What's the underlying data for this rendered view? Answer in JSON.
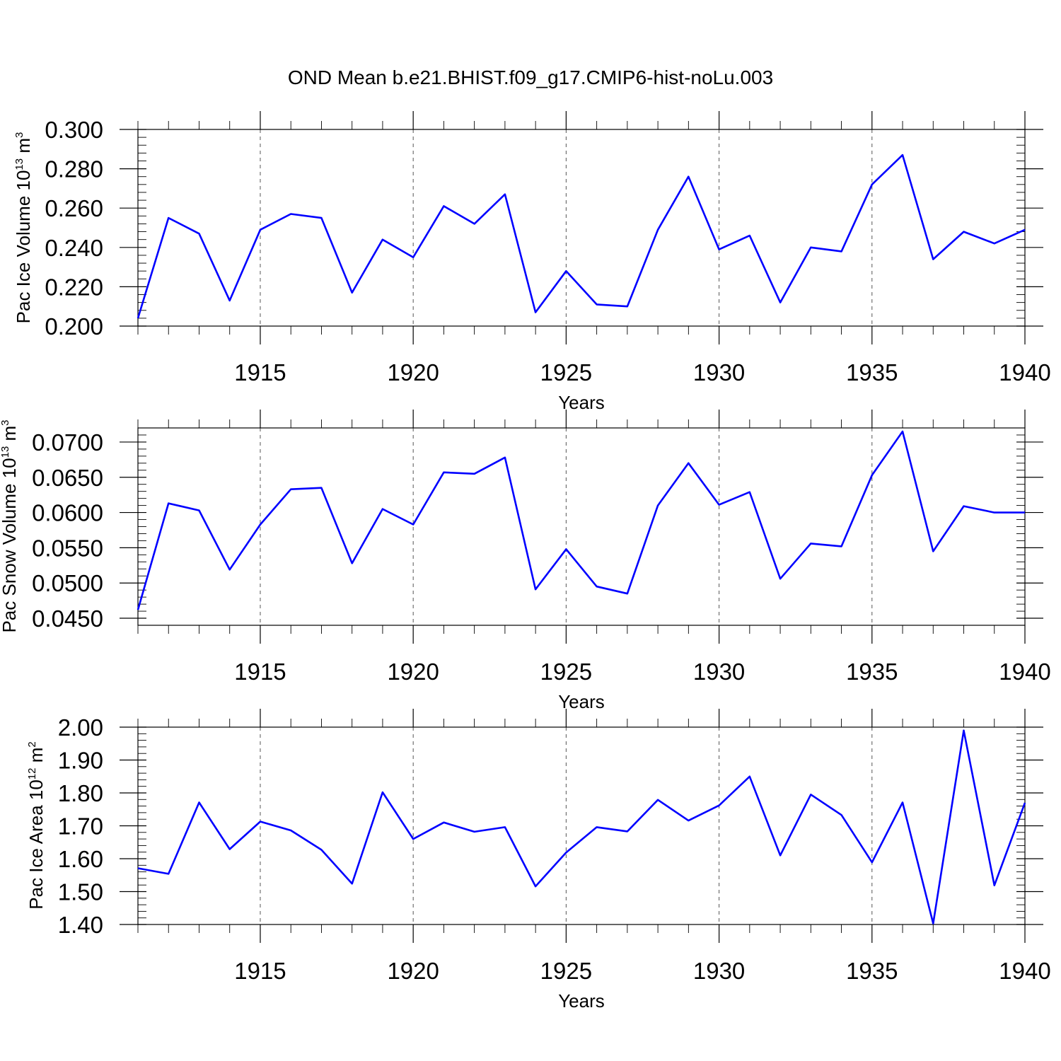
{
  "chart_data": {
    "title": "OND Mean b.e21.BHIST.f09_g17.CMIP6-hist-noLu.003",
    "panels": [
      {
        "type": "line",
        "ylabel_main": "Pac Ice Volume 10",
        "ylabel_exp": "13",
        "ylabel_unit": " m",
        "ylabel_unit_exp": "3",
        "xlabel": "Years",
        "xlim": [
          1911,
          1940
        ],
        "ylim": [
          0.2,
          0.3
        ],
        "yticks": [
          0.2,
          0.22,
          0.24,
          0.26,
          0.28,
          0.3
        ],
        "ytick_labels": [
          "0.200",
          "0.220",
          "0.240",
          "0.260",
          "0.280",
          "0.300"
        ],
        "xticks": [
          1915,
          1920,
          1925,
          1930,
          1935,
          1940
        ],
        "xtick_labels": [
          "1915",
          "1920",
          "1925",
          "1930",
          "1935",
          "1940"
        ],
        "x": [
          1911,
          1912,
          1913,
          1914,
          1915,
          1916,
          1917,
          1918,
          1919,
          1920,
          1921,
          1922,
          1923,
          1924,
          1925,
          1926,
          1927,
          1928,
          1929,
          1930,
          1931,
          1932,
          1933,
          1934,
          1935,
          1936,
          1937,
          1938,
          1939,
          1940
        ],
        "values": [
          0.204,
          0.255,
          0.247,
          0.213,
          0.249,
          0.257,
          0.255,
          0.217,
          0.244,
          0.235,
          0.261,
          0.252,
          0.267,
          0.207,
          0.228,
          0.211,
          0.21,
          0.249,
          0.276,
          0.239,
          0.246,
          0.212,
          0.24,
          0.238,
          0.272,
          0.287,
          0.234,
          0.248,
          0.242,
          0.249
        ],
        "color": "#0000ff"
      },
      {
        "type": "line",
        "ylabel_main": "Pac Snow Volume 10",
        "ylabel_exp": "13",
        "ylabel_unit": " m",
        "ylabel_unit_exp": "3",
        "xlabel": "Years",
        "xlim": [
          1911,
          1940
        ],
        "ylim": [
          0.044,
          0.072
        ],
        "yticks": [
          0.045,
          0.05,
          0.055,
          0.06,
          0.065,
          0.07
        ],
        "ytick_labels": [
          "0.0450",
          "0.0500",
          "0.0550",
          "0.0600",
          "0.0650",
          "0.0700"
        ],
        "xticks": [
          1915,
          1920,
          1925,
          1930,
          1935,
          1940
        ],
        "xtick_labels": [
          "1915",
          "1920",
          "1925",
          "1930",
          "1935",
          "1940"
        ],
        "x": [
          1911,
          1912,
          1913,
          1914,
          1915,
          1916,
          1917,
          1918,
          1919,
          1920,
          1921,
          1922,
          1923,
          1924,
          1925,
          1926,
          1927,
          1928,
          1929,
          1930,
          1931,
          1932,
          1933,
          1934,
          1935,
          1936,
          1937,
          1938,
          1939,
          1940
        ],
        "values": [
          0.0462,
          0.0613,
          0.0603,
          0.0519,
          0.0583,
          0.0633,
          0.0635,
          0.0528,
          0.0605,
          0.0583,
          0.0657,
          0.0655,
          0.0678,
          0.0491,
          0.0548,
          0.0495,
          0.0485,
          0.061,
          0.067,
          0.0611,
          0.0629,
          0.0506,
          0.0556,
          0.0552,
          0.0653,
          0.0715,
          0.0545,
          0.0609,
          0.06,
          0.06
        ],
        "color": "#0000ff"
      },
      {
        "type": "line",
        "ylabel_main": "Pac Ice Area 10",
        "ylabel_exp": "12",
        "ylabel_unit": " m",
        "ylabel_unit_exp": "2",
        "xlabel": "Years",
        "xlim": [
          1911,
          1940
        ],
        "ylim": [
          1.4,
          2.0
        ],
        "yticks": [
          1.4,
          1.5,
          1.6,
          1.7,
          1.8,
          1.9,
          2.0
        ],
        "ytick_labels": [
          "1.40",
          "1.50",
          "1.60",
          "1.70",
          "1.80",
          "1.90",
          "2.00"
        ],
        "xticks": [
          1915,
          1920,
          1925,
          1930,
          1935,
          1940
        ],
        "xtick_labels": [
          "1915",
          "1920",
          "1925",
          "1930",
          "1935",
          "1940"
        ],
        "x": [
          1911,
          1912,
          1913,
          1914,
          1915,
          1916,
          1917,
          1918,
          1919,
          1920,
          1921,
          1922,
          1923,
          1924,
          1925,
          1926,
          1927,
          1928,
          1929,
          1930,
          1931,
          1932,
          1933,
          1934,
          1935,
          1936,
          1937,
          1938,
          1939,
          1940
        ],
        "values": [
          1.571,
          1.554,
          1.771,
          1.629,
          1.713,
          1.686,
          1.627,
          1.524,
          1.802,
          1.66,
          1.71,
          1.682,
          1.696,
          1.516,
          1.619,
          1.696,
          1.683,
          1.779,
          1.716,
          1.762,
          1.85,
          1.61,
          1.795,
          1.733,
          1.589,
          1.771,
          1.403,
          1.99,
          1.519,
          1.77
        ],
        "color": "#0000ff"
      }
    ]
  }
}
